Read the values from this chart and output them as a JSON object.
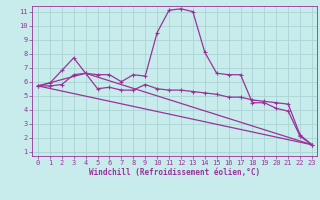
{
  "xlabel": "Windchill (Refroidissement éolien,°C)",
  "background_color": "#c8ecec",
  "grid_color": "#aad4d4",
  "line_color": "#993399",
  "xlim": [
    -0.5,
    23.4
  ],
  "ylim": [
    0.7,
    11.4
  ],
  "xticks": [
    0,
    1,
    2,
    3,
    4,
    5,
    6,
    7,
    8,
    9,
    10,
    11,
    12,
    13,
    14,
    15,
    16,
    17,
    18,
    19,
    20,
    21,
    22,
    23
  ],
  "yticks": [
    1,
    2,
    3,
    4,
    5,
    6,
    7,
    8,
    9,
    10,
    11
  ],
  "line1_x": [
    0,
    1,
    2,
    3,
    4,
    5,
    6,
    7,
    8,
    9,
    10,
    11,
    12,
    13,
    14,
    15,
    16,
    17,
    18,
    19,
    20,
    21,
    22,
    23
  ],
  "line1_y": [
    5.7,
    5.9,
    6.8,
    7.7,
    6.6,
    6.5,
    6.5,
    6.0,
    6.5,
    6.4,
    9.5,
    11.1,
    11.2,
    11.0,
    8.1,
    6.6,
    6.5,
    6.5,
    4.5,
    4.5,
    4.1,
    3.9,
    2.1,
    1.5
  ],
  "line2_x": [
    0,
    1,
    2,
    3,
    4,
    5,
    6,
    7,
    8,
    9,
    10,
    11,
    12,
    13,
    14,
    15,
    16,
    17,
    18,
    19,
    20,
    21,
    22,
    23
  ],
  "line2_y": [
    5.7,
    5.7,
    5.8,
    6.5,
    6.6,
    5.5,
    5.6,
    5.4,
    5.4,
    5.8,
    5.5,
    5.4,
    5.4,
    5.3,
    5.2,
    5.1,
    4.9,
    4.9,
    4.7,
    4.6,
    4.5,
    4.4,
    2.2,
    1.5
  ],
  "line3_x": [
    0,
    23
  ],
  "line3_y": [
    5.7,
    1.5
  ],
  "line4_x": [
    0,
    4,
    23
  ],
  "line4_y": [
    5.7,
    6.6,
    1.5
  ]
}
